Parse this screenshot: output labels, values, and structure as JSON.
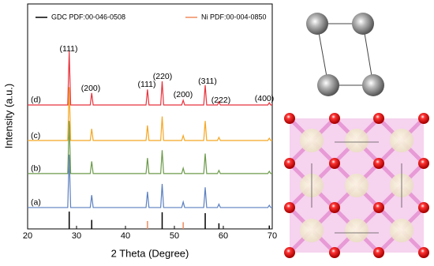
{
  "chart_data": {
    "type": "line",
    "x_label": "2 Theta (Degree)",
    "y_label": "Intensity (a.u.)",
    "xlim": [
      20,
      70
    ],
    "xticks": [
      20,
      30,
      40,
      50,
      60,
      70
    ],
    "ylim": [
      0,
      100
    ],
    "series": [
      {
        "name": "(a)",
        "color": "#5b7fc0",
        "x": [
          20,
          28.2,
          28.5,
          28.8,
          32.8,
          33.1,
          33.4,
          44.2,
          44.5,
          44.8,
          47.2,
          47.5,
          47.8,
          51.5,
          51.8,
          52.1,
          56.0,
          56.3,
          56.6,
          58.8,
          59.1,
          59.4,
          69.1,
          69.4,
          69.7,
          70
        ],
        "values": [
          9.5,
          9.5,
          33,
          9.5,
          9.5,
          15,
          9.5,
          9.5,
          16.5,
          9.5,
          9.5,
          20,
          9.5,
          9.5,
          12,
          9.5,
          9.5,
          18.5,
          9.5,
          9.5,
          11,
          9.5,
          9.5,
          10.5,
          9.5,
          9.5
        ]
      },
      {
        "name": "(b)",
        "color": "#6b9a4a",
        "x": [
          20,
          28.2,
          28.5,
          28.8,
          32.8,
          33.1,
          33.4,
          44.2,
          44.5,
          44.8,
          47.2,
          47.5,
          47.8,
          51.5,
          51.8,
          52.1,
          56.0,
          56.3,
          56.6,
          58.8,
          59.1,
          59.4,
          69.1,
          69.4,
          69.7,
          70
        ],
        "values": [
          24.6,
          24.6,
          48,
          24.6,
          24.6,
          30,
          24.6,
          24.6,
          31.5,
          24.6,
          24.6,
          35,
          24.6,
          24.6,
          27,
          24.6,
          24.6,
          33.5,
          24.6,
          24.6,
          26,
          24.6,
          24.6,
          25.6,
          24.6,
          24.6
        ]
      },
      {
        "name": "(c)",
        "color": "#f5a623",
        "x": [
          20,
          28.2,
          28.5,
          28.8,
          32.8,
          33.1,
          33.4,
          44.2,
          44.5,
          44.8,
          47.2,
          47.5,
          47.8,
          51.5,
          51.8,
          52.1,
          56.0,
          56.3,
          56.6,
          58.8,
          59.1,
          59.4,
          69.1,
          69.4,
          69.7,
          70
        ],
        "values": [
          39.3,
          39.3,
          63,
          39.3,
          39.3,
          44.5,
          39.3,
          39.3,
          46,
          39.3,
          39.3,
          50,
          39.3,
          39.3,
          41.5,
          39.3,
          39.3,
          48,
          39.3,
          39.3,
          40.7,
          39.3,
          39.3,
          40.3,
          39.3,
          39.3
        ]
      },
      {
        "name": "(d)",
        "color": "#e8323c",
        "x": [
          20,
          28.2,
          28.5,
          28.8,
          32.8,
          33.1,
          33.4,
          44.2,
          44.5,
          44.8,
          47.2,
          47.5,
          47.8,
          51.5,
          51.8,
          52.1,
          56.0,
          56.3,
          56.6,
          58.8,
          59.1,
          59.4,
          69.1,
          69.4,
          69.7,
          70
        ],
        "values": [
          55.1,
          55.1,
          79,
          55.1,
          55.1,
          60.4,
          55.1,
          55.1,
          62,
          55.1,
          55.1,
          65.6,
          55.1,
          55.1,
          57.2,
          55.1,
          55.1,
          63.9,
          55.1,
          55.1,
          56.5,
          55.1,
          55.1,
          56.1,
          55.1,
          55.1
        ]
      }
    ],
    "references": [
      {
        "name": "GDC PDF:00-046-0508",
        "color": "#000000",
        "x": [
          28.5,
          33.1,
          47.5,
          56.3,
          59.1,
          69.4
        ],
        "values": [
          7.7,
          4,
          7.4,
          7,
          2.5,
          1.5
        ]
      },
      {
        "name": "Ni PDF:00-004-0850",
        "color": "#f08a5d",
        "x": [
          44.5,
          51.8
        ],
        "values": [
          3.5,
          3
        ]
      }
    ],
    "annotations": [
      {
        "text": "(111)",
        "color": "#000000"
      },
      {
        "text": "(200)",
        "color": "#000000"
      },
      {
        "text": "(111)",
        "color": "#e8323c"
      },
      {
        "text": "(220)",
        "color": "#000000"
      },
      {
        "text": "(200)",
        "color": "#e8323c"
      },
      {
        "text": "(311)",
        "color": "#000000"
      },
      {
        "text": "(222)",
        "color": "#000000"
      },
      {
        "text": "(400)",
        "color": "#000000"
      }
    ]
  }
}
